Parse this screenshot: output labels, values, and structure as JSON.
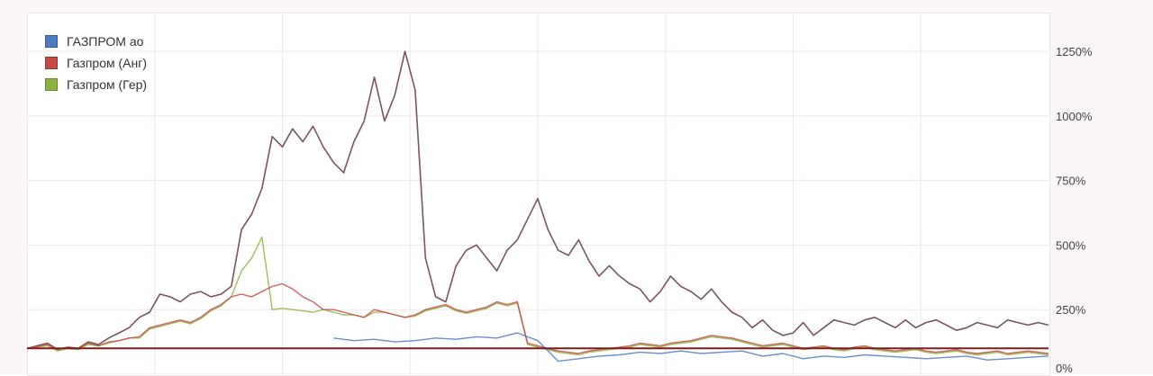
{
  "chart_data": {
    "type": "line",
    "title": "",
    "xlabel": "",
    "ylabel": "",
    "ylim": [
      0,
      1400
    ],
    "y_ticks": [
      "0%",
      "250%",
      "500%",
      "750%",
      "1000%",
      "1250%"
    ],
    "y_tick_values": [
      0,
      250,
      500,
      750,
      1000,
      1250
    ],
    "grid": true,
    "legend_position": "top-left",
    "reference_line": {
      "value": 100,
      "color": "#7a1e1e"
    },
    "series": [
      {
        "name": "ГАЗПРОМ ао",
        "color": "#4f7bc4",
        "x": [
          0,
          14,
          20,
          25,
          28,
          30,
          32,
          34,
          36,
          38,
          40,
          42,
          44,
          46,
          48,
          50,
          52,
          54,
          56,
          58,
          60,
          62,
          64,
          66,
          68,
          70,
          72,
          74,
          76,
          78,
          80,
          82,
          84,
          86,
          88,
          90,
          92,
          94,
          96,
          98,
          100
        ],
        "y": [
          null,
          null,
          null,
          null,
          null,
          140,
          130,
          135,
          125,
          130,
          140,
          135,
          145,
          140,
          160,
          130,
          50,
          60,
          70,
          75,
          85,
          80,
          90,
          80,
          85,
          90,
          70,
          80,
          60,
          70,
          65,
          75,
          70,
          65,
          60,
          65,
          70,
          55,
          60,
          65,
          70
        ]
      },
      {
        "name": "Газпром (Анг)",
        "color": "#c44a44",
        "x": [
          0,
          2,
          3,
          4,
          5,
          6,
          7,
          8,
          9,
          10,
          11,
          12,
          13,
          14,
          15,
          16,
          17,
          18,
          19,
          20,
          21,
          22,
          23,
          24,
          25,
          26,
          27,
          28,
          29,
          30,
          31,
          32,
          33,
          34,
          35,
          36,
          37,
          38,
          39,
          40,
          41,
          42,
          43,
          44,
          45,
          46,
          47,
          48,
          49,
          50,
          51,
          52,
          53,
          54,
          55,
          56,
          57,
          58,
          59,
          60,
          61,
          62,
          63,
          64,
          65,
          66,
          67,
          68,
          69,
          70,
          71,
          72,
          73,
          74,
          75,
          76,
          77,
          78,
          79,
          80,
          81,
          82,
          83,
          84,
          85,
          86,
          87,
          88,
          89,
          90,
          91,
          92,
          93,
          94,
          95,
          96,
          97,
          98,
          99,
          100
        ],
        "y": [
          100,
          115,
          95,
          105,
          100,
          120,
          110,
          125,
          130,
          140,
          145,
          180,
          190,
          200,
          210,
          200,
          220,
          250,
          270,
          300,
          310,
          300,
          320,
          340,
          350,
          330,
          300,
          280,
          250,
          250,
          240,
          230,
          220,
          250,
          240,
          230,
          220,
          230,
          250,
          260,
          270,
          250,
          240,
          250,
          260,
          280,
          270,
          280,
          120,
          110,
          100,
          90,
          85,
          80,
          90,
          95,
          100,
          105,
          110,
          120,
          115,
          110,
          120,
          125,
          130,
          140,
          150,
          145,
          140,
          130,
          120,
          110,
          115,
          120,
          110,
          100,
          105,
          110,
          100,
          95,
          105,
          110,
          100,
          95,
          90,
          95,
          100,
          90,
          85,
          90,
          95,
          85,
          80,
          85,
          90,
          80,
          85,
          90,
          85,
          80
        ]
      },
      {
        "name": "Газпром (Гер)",
        "color": "#8db33f",
        "x": [
          0,
          2,
          3,
          4,
          5,
          6,
          7,
          8,
          9,
          10,
          11,
          12,
          13,
          14,
          15,
          16,
          17,
          18,
          19,
          20,
          21,
          22,
          23,
          24,
          25,
          26,
          27,
          28,
          29,
          30,
          31,
          32,
          33,
          34,
          35,
          36,
          37,
          38,
          39,
          40,
          41,
          42,
          43,
          44,
          45,
          46,
          47,
          48,
          49,
          50,
          51,
          52,
          53,
          54,
          55,
          56,
          57,
          58,
          59,
          60,
          61,
          62,
          63,
          64,
          65,
          66,
          67,
          68,
          69,
          70,
          71,
          72,
          73,
          74,
          75,
          76,
          77,
          78,
          79,
          80,
          81,
          82,
          83,
          84,
          85,
          86,
          87,
          88,
          89,
          90,
          91,
          92,
          93,
          94,
          95,
          96,
          97,
          98,
          99,
          100
        ],
        "y": [
          100,
          110,
          90,
          100,
          95,
          115,
          110,
          120,
          130,
          140,
          140,
          175,
          185,
          195,
          205,
          195,
          215,
          245,
          265,
          300,
          400,
          450,
          530,
          250,
          255,
          250,
          245,
          240,
          250,
          240,
          230,
          230,
          220,
          240,
          240,
          230,
          220,
          225,
          245,
          255,
          265,
          245,
          235,
          245,
          255,
          275,
          265,
          275,
          115,
          105,
          95,
          85,
          80,
          75,
          85,
          90,
          95,
          100,
          105,
          115,
          110,
          105,
          115,
          120,
          125,
          135,
          145,
          140,
          135,
          125,
          115,
          105,
          110,
          115,
          105,
          95,
          100,
          105,
          95,
          90,
          100,
          105,
          95,
          90,
          85,
          90,
          95,
          85,
          80,
          85,
          90,
          80,
          75,
          80,
          85,
          75,
          80,
          85,
          80,
          75
        ]
      },
      {
        "name": "",
        "color": "#7a5560",
        "x": [
          0,
          2,
          3,
          4,
          5,
          6,
          7,
          8,
          9,
          10,
          11,
          12,
          13,
          14,
          15,
          16,
          17,
          18,
          19,
          20,
          21,
          22,
          23,
          24,
          25,
          26,
          27,
          28,
          29,
          30,
          31,
          32,
          33,
          34,
          35,
          36,
          37,
          38,
          39,
          40,
          41,
          42,
          43,
          44,
          45,
          46,
          47,
          48,
          49,
          50,
          51,
          52,
          53,
          54,
          55,
          56,
          57,
          58,
          59,
          60,
          61,
          62,
          63,
          64,
          65,
          66,
          67,
          68,
          69,
          70,
          71,
          72,
          73,
          74,
          75,
          76,
          77,
          78,
          79,
          80,
          81,
          82,
          83,
          84,
          85,
          86,
          87,
          88,
          89,
          90,
          91,
          92,
          93,
          94,
          95,
          96,
          97,
          98,
          99,
          100
        ],
        "y": [
          100,
          120,
          95,
          105,
          100,
          125,
          115,
          140,
          160,
          180,
          220,
          240,
          310,
          300,
          280,
          310,
          320,
          300,
          310,
          340,
          560,
          620,
          720,
          920,
          880,
          950,
          900,
          960,
          880,
          820,
          780,
          900,
          980,
          1150,
          980,
          1080,
          1250,
          1100,
          450,
          300,
          280,
          420,
          480,
          500,
          450,
          400,
          480,
          520,
          600,
          680,
          560,
          480,
          460,
          520,
          440,
          380,
          420,
          380,
          350,
          330,
          280,
          320,
          380,
          340,
          320,
          290,
          330,
          280,
          240,
          220,
          180,
          210,
          170,
          150,
          160,
          200,
          150,
          180,
          210,
          200,
          190,
          210,
          220,
          200,
          180,
          210,
          180,
          200,
          210,
          190,
          170,
          180,
          200,
          190,
          180,
          210,
          200,
          190,
          200,
          190
        ]
      }
    ]
  }
}
